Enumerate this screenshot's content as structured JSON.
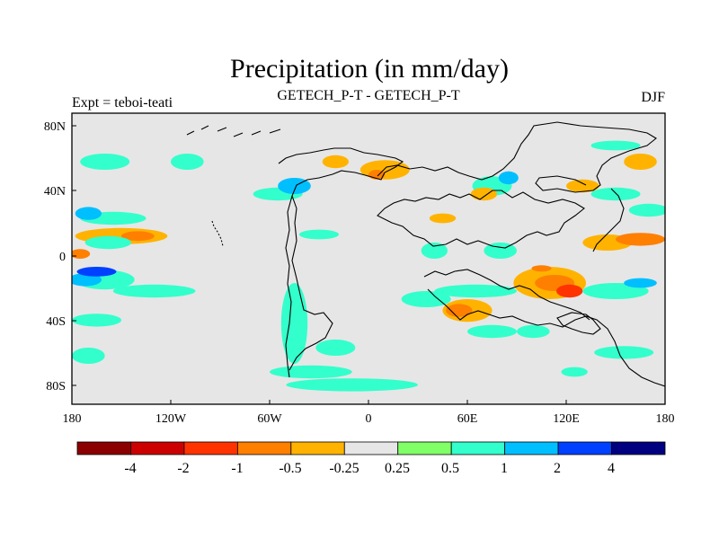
{
  "chart_data": {
    "type": "heatmap",
    "title": "Precipitation (in mm/day)",
    "subtitle_left": "Expt = teboi-teati",
    "subtitle_center": "GETECH_P-T - GETECH_P-T",
    "subtitle_right": "DJF",
    "x_ticks": [
      "180",
      "120W",
      "60W",
      "0",
      "60E",
      "120E",
      "180"
    ],
    "x_tick_values": [
      -180,
      -120,
      -60,
      0,
      60,
      120,
      180
    ],
    "y_ticks": [
      "80N",
      "40N",
      "0",
      "40S",
      "80S"
    ],
    "y_tick_values": [
      80,
      40,
      0,
      -40,
      -80
    ],
    "xlim": [
      -180,
      180
    ],
    "ylim": [
      -90,
      90
    ],
    "colorbar": {
      "colors": [
        "#8b0000",
        "#cc0000",
        "#ff3300",
        "#ff7f00",
        "#ffb300",
        "#e6e6e6",
        "#80ff66",
        "#33ffcc",
        "#00bfff",
        "#0040ff",
        "#000080"
      ],
      "labels": [
        "-4",
        "-2",
        "-1",
        "-0.5",
        "-0.25",
        "0.25",
        "0.5",
        "1",
        "2",
        "4"
      ]
    },
    "background_color": "#e6e6e6",
    "anomaly_patches": [
      {
        "lon": -150,
        "lat": 14,
        "rx": 28,
        "ry": 5,
        "level": -0.5
      },
      {
        "lon": -140,
        "lat": 14,
        "rx": 10,
        "ry": 3,
        "level": -1
      },
      {
        "lon": -158,
        "lat": 10,
        "rx": 14,
        "ry": 4,
        "level": 0.5
      },
      {
        "lon": -155,
        "lat": 25,
        "rx": 20,
        "ry": 4,
        "level": 0.5
      },
      {
        "lon": -170,
        "lat": 28,
        "rx": 8,
        "ry": 4,
        "level": 1
      },
      {
        "lon": -160,
        "lat": -13,
        "rx": 18,
        "ry": 6,
        "level": 0.5
      },
      {
        "lon": -172,
        "lat": -13,
        "rx": 10,
        "ry": 4,
        "level": 1
      },
      {
        "lon": -165,
        "lat": -8,
        "rx": 12,
        "ry": 3,
        "level": 2
      },
      {
        "lon": -130,
        "lat": -20,
        "rx": 25,
        "ry": 4,
        "level": 0.5
      },
      {
        "lon": -165,
        "lat": -38,
        "rx": 15,
        "ry": 4,
        "level": 0.5
      },
      {
        "lon": -170,
        "lat": -60,
        "rx": 10,
        "ry": 5,
        "level": 0.5
      },
      {
        "lon": -120,
        "lat": -35,
        "rx": 12,
        "ry": 3,
        "level": -0.25
      },
      {
        "lon": -160,
        "lat": 60,
        "rx": 15,
        "ry": 5,
        "level": 0.5
      },
      {
        "lon": -110,
        "lat": 60,
        "rx": 10,
        "ry": 5,
        "level": 0.5
      },
      {
        "lon": -175,
        "lat": 3,
        "rx": 6,
        "ry": 3,
        "level": -1
      },
      {
        "lon": -45,
        "lat": -40,
        "rx": 8,
        "ry": 25,
        "level": 0.5
      },
      {
        "lon": -35,
        "lat": -70,
        "rx": 25,
        "ry": 4,
        "level": 0.5
      },
      {
        "lon": -10,
        "lat": -78,
        "rx": 40,
        "ry": 4,
        "level": 0.5
      },
      {
        "lon": -20,
        "lat": -55,
        "rx": 12,
        "ry": 5,
        "level": 0.5
      },
      {
        "lon": -55,
        "lat": 40,
        "rx": 15,
        "ry": 4,
        "level": 0.5
      },
      {
        "lon": -45,
        "lat": 45,
        "rx": 10,
        "ry": 5,
        "level": 1
      },
      {
        "lon": -30,
        "lat": 15,
        "rx": 12,
        "ry": 3,
        "level": 0.5
      },
      {
        "lon": -20,
        "lat": 60,
        "rx": 8,
        "ry": 4,
        "level": -0.5
      },
      {
        "lon": 10,
        "lat": 55,
        "rx": 15,
        "ry": 6,
        "level": -0.5
      },
      {
        "lon": 5,
        "lat": 52,
        "rx": 5,
        "ry": 3,
        "level": -1
      },
      {
        "lon": 50,
        "lat": 30,
        "rx": 12,
        "ry": 4,
        "level": -0.25
      },
      {
        "lon": 45,
        "lat": 25,
        "rx": 8,
        "ry": 3,
        "level": -0.5
      },
      {
        "lon": 40,
        "lat": 5,
        "rx": 8,
        "ry": 5,
        "level": 0.5
      },
      {
        "lon": 35,
        "lat": -25,
        "rx": 15,
        "ry": 5,
        "level": 0.5
      },
      {
        "lon": 65,
        "lat": -20,
        "rx": 25,
        "ry": 4,
        "level": 0.5
      },
      {
        "lon": 60,
        "lat": -32,
        "rx": 15,
        "ry": 7,
        "level": -0.5
      },
      {
        "lon": 55,
        "lat": -32,
        "rx": 8,
        "ry": 4,
        "level": -1
      },
      {
        "lon": 75,
        "lat": -45,
        "rx": 15,
        "ry": 4,
        "level": 0.5
      },
      {
        "lon": 100,
        "lat": -45,
        "rx": 10,
        "ry": 4,
        "level": 0.5
      },
      {
        "lon": 80,
        "lat": 5,
        "rx": 10,
        "ry": 5,
        "level": 0.5
      },
      {
        "lon": 75,
        "lat": 45,
        "rx": 12,
        "ry": 6,
        "level": 0.5
      },
      {
        "lon": 85,
        "lat": 50,
        "rx": 6,
        "ry": 4,
        "level": 1
      },
      {
        "lon": 70,
        "lat": 40,
        "rx": 8,
        "ry": 4,
        "level": -0.5
      },
      {
        "lon": 110,
        "lat": -15,
        "rx": 22,
        "ry": 10,
        "level": -0.5
      },
      {
        "lon": 113,
        "lat": -15,
        "rx": 12,
        "ry": 5,
        "level": -1
      },
      {
        "lon": 122,
        "lat": -20,
        "rx": 8,
        "ry": 4,
        "level": -2
      },
      {
        "lon": 105,
        "lat": -6,
        "rx": 6,
        "ry": 2,
        "level": -1
      },
      {
        "lon": 145,
        "lat": 10,
        "rx": 15,
        "ry": 5,
        "level": -0.5
      },
      {
        "lon": 165,
        "lat": 12,
        "rx": 15,
        "ry": 4,
        "level": -1
      },
      {
        "lon": 150,
        "lat": -20,
        "rx": 20,
        "ry": 5,
        "level": 0.5
      },
      {
        "lon": 165,
        "lat": -15,
        "rx": 10,
        "ry": 3,
        "level": 1
      },
      {
        "lon": 170,
        "lat": 30,
        "rx": 12,
        "ry": 4,
        "level": 0.5
      },
      {
        "lon": 150,
        "lat": 40,
        "rx": 15,
        "ry": 4,
        "level": 0.5
      },
      {
        "lon": 130,
        "lat": 45,
        "rx": 10,
        "ry": 4,
        "level": -0.5
      },
      {
        "lon": 165,
        "lat": 60,
        "rx": 10,
        "ry": 5,
        "level": -0.5
      },
      {
        "lon": 150,
        "lat": 70,
        "rx": 15,
        "ry": 3,
        "level": 0.5
      },
      {
        "lon": 155,
        "lat": -58,
        "rx": 18,
        "ry": 4,
        "level": 0.5
      },
      {
        "lon": 125,
        "lat": -70,
        "rx": 8,
        "ry": 3,
        "level": 0.5
      }
    ]
  }
}
